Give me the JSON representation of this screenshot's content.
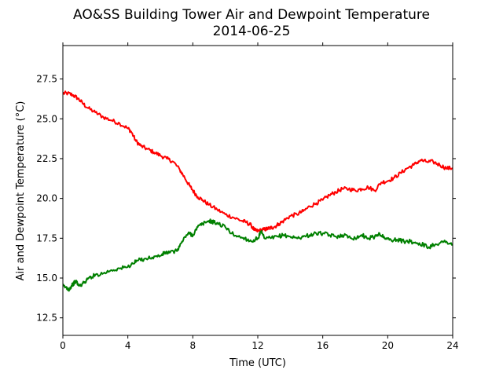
{
  "chart_data": {
    "type": "line",
    "title": "AO&SS Building Tower Air and Dewpoint Temperature",
    "subtitle": "2014-06-25",
    "xlabel": "Time (UTC)",
    "ylabel": "Air and Dewpoint Temperature (°C)",
    "xlim": [
      0,
      24
    ],
    "ylim": [
      11.4,
      29.6
    ],
    "xticks": [
      0,
      4,
      8,
      12,
      16,
      20,
      24
    ],
    "xtick_labels": [
      "0",
      "4",
      "8",
      "12",
      "16",
      "20",
      "24"
    ],
    "yticks": [
      12.5,
      15.0,
      17.5,
      20.0,
      22.5,
      25.0,
      27.5
    ],
    "ytick_labels": [
      "12.5",
      "15.0",
      "17.5",
      "20.0",
      "22.5",
      "25.0",
      "27.5"
    ],
    "grid": false,
    "legend": "none",
    "series": [
      {
        "color": "#ff0000",
        "x": [
          0,
          0.3,
          0.6,
          0.9,
          1.2,
          1.5,
          2.0,
          2.5,
          3.0,
          3.5,
          4.0,
          4.2,
          4.5,
          4.8,
          5.2,
          5.6,
          6.0,
          6.4,
          6.8,
          7.2,
          7.5,
          7.8,
          8.0,
          8.3,
          8.6,
          9.0,
          9.5,
          10.0,
          10.5,
          11.0,
          11.3,
          11.6,
          11.8,
          12.0,
          12.2,
          12.4,
          12.6,
          12.8,
          13.0,
          13.3,
          13.6,
          14.0,
          14.4,
          14.8,
          15.2,
          15.6,
          16.0,
          16.4,
          16.8,
          17.2,
          17.6,
          18.0,
          18.4,
          18.8,
          19.2,
          19.6,
          20.0,
          20.4,
          20.8,
          21.2,
          21.6,
          22.0,
          22.4,
          22.8,
          23.2,
          23.6,
          24.0
        ],
        "y": [
          26.6,
          26.6,
          26.5,
          26.3,
          26.0,
          25.7,
          25.4,
          25.1,
          24.9,
          24.7,
          24.4,
          24.2,
          23.6,
          23.3,
          23.1,
          22.9,
          22.7,
          22.5,
          22.3,
          21.8,
          21.3,
          20.8,
          20.5,
          20.1,
          19.9,
          19.6,
          19.3,
          19.0,
          18.8,
          18.6,
          18.5,
          18.3,
          18.0,
          17.95,
          18.0,
          18.05,
          18.1,
          18.15,
          18.2,
          18.4,
          18.6,
          18.9,
          19.0,
          19.2,
          19.5,
          19.7,
          19.9,
          20.2,
          20.4,
          20.6,
          20.6,
          20.5,
          20.6,
          20.7,
          20.5,
          21.0,
          21.1,
          21.3,
          21.6,
          21.9,
          22.1,
          22.4,
          22.3,
          22.3,
          22.1,
          21.9,
          21.9
        ]
      },
      {
        "color": "#008000",
        "x": [
          0,
          0.2,
          0.4,
          0.6,
          0.8,
          1.0,
          1.3,
          1.6,
          2.0,
          2.5,
          3.0,
          3.5,
          4.0,
          4.3,
          4.6,
          5.0,
          5.5,
          6.0,
          6.3,
          6.6,
          7.0,
          7.3,
          7.6,
          7.8,
          8.0,
          8.3,
          8.6,
          9.0,
          9.3,
          9.6,
          10.0,
          10.4,
          10.8,
          11.2,
          11.6,
          12.0,
          12.2,
          12.4,
          12.8,
          13.2,
          13.6,
          14.0,
          14.4,
          14.8,
          15.2,
          15.6,
          16.0,
          16.4,
          16.8,
          17.2,
          17.6,
          18.0,
          18.4,
          18.8,
          19.2,
          19.5,
          19.8,
          20.2,
          20.6,
          21.0,
          21.4,
          21.8,
          22.2,
          22.5,
          22.8,
          23.2,
          23.6,
          24.0
        ],
        "y": [
          14.5,
          14.4,
          14.3,
          14.6,
          14.8,
          14.5,
          14.7,
          15.0,
          15.2,
          15.3,
          15.5,
          15.6,
          15.7,
          15.9,
          16.1,
          16.2,
          16.3,
          16.4,
          16.6,
          16.6,
          16.7,
          17.2,
          17.7,
          17.8,
          17.7,
          18.2,
          18.4,
          18.6,
          18.5,
          18.4,
          18.2,
          17.8,
          17.6,
          17.5,
          17.3,
          17.5,
          17.9,
          17.5,
          17.5,
          17.6,
          17.7,
          17.6,
          17.5,
          17.6,
          17.7,
          17.8,
          17.8,
          17.7,
          17.6,
          17.7,
          17.6,
          17.5,
          17.7,
          17.5,
          17.6,
          17.8,
          17.5,
          17.4,
          17.4,
          17.3,
          17.3,
          17.2,
          17.1,
          16.9,
          17.1,
          17.2,
          17.3,
          17.1
        ]
      }
    ]
  }
}
